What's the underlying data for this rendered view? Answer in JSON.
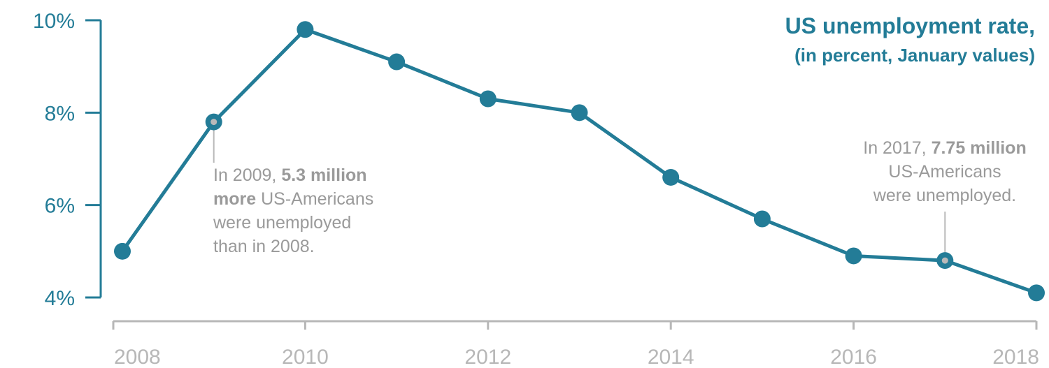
{
  "chart_data": {
    "type": "line",
    "title": "US unemployment rate,",
    "subtitle": "(in percent, January values)",
    "x": [
      2008,
      2009,
      2010,
      2011,
      2012,
      2013,
      2014,
      2015,
      2016,
      2017,
      2018
    ],
    "series": [
      {
        "values": [
          5.0,
          7.8,
          9.8,
          9.1,
          8.3,
          8.0,
          6.6,
          5.7,
          4.9,
          4.8,
          4.1
        ]
      }
    ],
    "xticks": [
      2008,
      2010,
      2012,
      2014,
      2016,
      2018
    ],
    "xtick_labels": [
      "2008",
      "2010",
      "2012",
      "2014",
      "2016",
      "2018"
    ],
    "yticks": [
      4,
      6,
      8,
      10
    ],
    "ytick_labels": [
      "4%",
      "6%",
      "8%",
      "10%"
    ],
    "xlim": [
      2008,
      2018
    ],
    "ylim": [
      4,
      10
    ],
    "grid": false,
    "colors": {
      "line": "#237c97",
      "axis_y": "#237c97",
      "axis_x": "#b7b7b7",
      "annotation": "#9a9a9a",
      "marker_dot": "#b9b9b9"
    },
    "annotations": [
      {
        "x": 2009,
        "lines": [
          [
            {
              "t": "In 2009, "
            },
            {
              "t": "5.3 million",
              "b": true
            }
          ],
          [
            {
              "t": "more",
              "b": true
            },
            {
              "t": " US-Americans"
            }
          ],
          [
            {
              "t": "were unemployed"
            }
          ],
          [
            {
              "t": "than in 2008."
            }
          ]
        ]
      },
      {
        "x": 2017,
        "lines": [
          [
            {
              "t": "In 2017, "
            },
            {
              "t": "7.75 million",
              "b": true
            }
          ],
          [
            {
              "t": "US-Americans"
            }
          ],
          [
            {
              "t": "were unemployed."
            }
          ]
        ]
      }
    ]
  }
}
